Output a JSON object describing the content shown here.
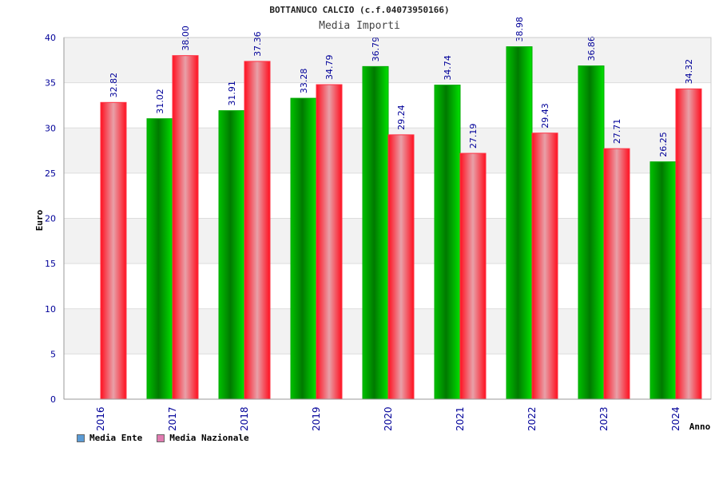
{
  "chart_data": {
    "type": "bar",
    "title": "BOTTANUCO CALCIO (c.f.04073950166)",
    "subtitle": "Media Importi",
    "xlabel": "Anno",
    "ylabel": "Euro",
    "ylim": [
      0,
      40
    ],
    "yticks": [
      0,
      5,
      10,
      15,
      20,
      25,
      30,
      35,
      40
    ],
    "categories": [
      "2016",
      "2017",
      "2018",
      "2019",
      "2020",
      "2021",
      "2022",
      "2023",
      "2024"
    ],
    "series": [
      {
        "name": "Media Ente",
        "legend_color": "#5b9bd5",
        "values": [
          null,
          31.02,
          31.91,
          33.28,
          36.79,
          34.74,
          38.98,
          36.86,
          26.25
        ],
        "labels": [
          "",
          "31.02",
          "31.91",
          "33.28",
          "36.79",
          "34.74",
          "38.98",
          "36.86",
          "26.25"
        ]
      },
      {
        "name": "Media Nazionale",
        "legend_color": "#e07bb0",
        "values": [
          32.82,
          38.0,
          37.36,
          34.79,
          29.24,
          27.19,
          29.43,
          27.71,
          34.32
        ],
        "labels": [
          "32.82",
          "38.00",
          "37.36",
          "34.79",
          "29.24",
          "27.19",
          "29.43",
          "27.71",
          "34.32"
        ]
      }
    ],
    "grid": true,
    "legend": "bottom-left"
  }
}
